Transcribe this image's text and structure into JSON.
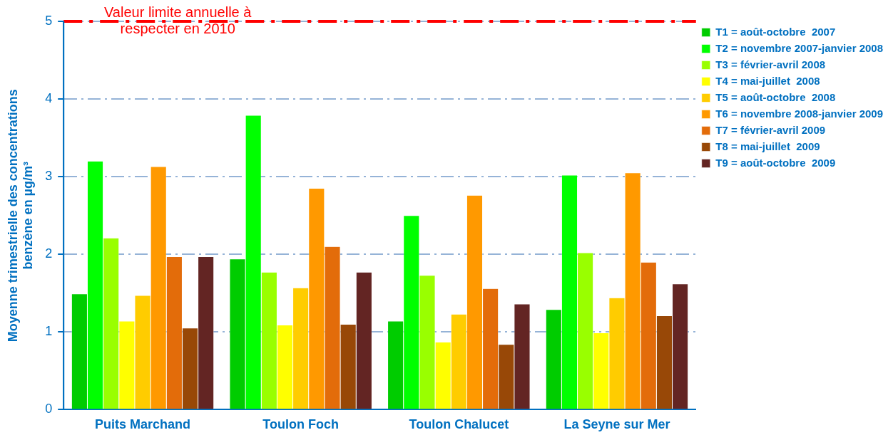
{
  "chart_data": {
    "type": "bar",
    "ylabel": "Moyenne trimestrielle des concentrations benzène en µg/m³",
    "categories": [
      "Puits Marchand",
      "Toulon Foch",
      "Toulon Chalucet",
      "La Seyne sur Mer"
    ],
    "series": [
      {
        "name": "T1 = août-octobre  2007",
        "color": "#00cc00",
        "values": [
          1.49,
          1.94,
          1.14,
          1.29
        ]
      },
      {
        "name": "T2 = novembre 2007-janvier 2008",
        "color": "#00ff00",
        "values": [
          3.2,
          3.79,
          2.5,
          3.02
        ]
      },
      {
        "name": "T3 = février-avril 2008",
        "color": "#99ff00",
        "values": [
          2.21,
          1.77,
          1.73,
          2.02
        ]
      },
      {
        "name": "T4 = mai-juillet  2008",
        "color": "#ffff00",
        "values": [
          1.14,
          1.09,
          0.87,
          0.99
        ]
      },
      {
        "name": "T5 = août-octobre  2008",
        "color": "#ffcc00",
        "values": [
          1.47,
          1.57,
          1.23,
          1.44
        ]
      },
      {
        "name": "T6 = novembre 2008-janvier 2009",
        "color": "#ff9900",
        "values": [
          3.13,
          2.85,
          2.76,
          3.05
        ]
      },
      {
        "name": "T7 = février-avril 2009",
        "color": "#e36c0a",
        "values": [
          1.97,
          2.1,
          1.56,
          1.9
        ]
      },
      {
        "name": "T8 = mai-juillet  2009",
        "color": "#984807",
        "values": [
          1.05,
          1.1,
          0.84,
          1.21
        ]
      },
      {
        "name": "T9 = août-octobre  2009",
        "color": "#632523",
        "values": [
          1.97,
          1.77,
          1.36,
          1.62
        ]
      }
    ],
    "ylim": [
      0,
      5
    ],
    "yticks": [
      0,
      1,
      2,
      3,
      4,
      5
    ],
    "grid": "y",
    "legend": "right",
    "ref_lines": [
      {
        "axis": "y",
        "value": 5,
        "label": "Valeur limite annuelle à respecter en 2010",
        "color": "#ff0000",
        "line_style": "dashdot"
      }
    ]
  }
}
